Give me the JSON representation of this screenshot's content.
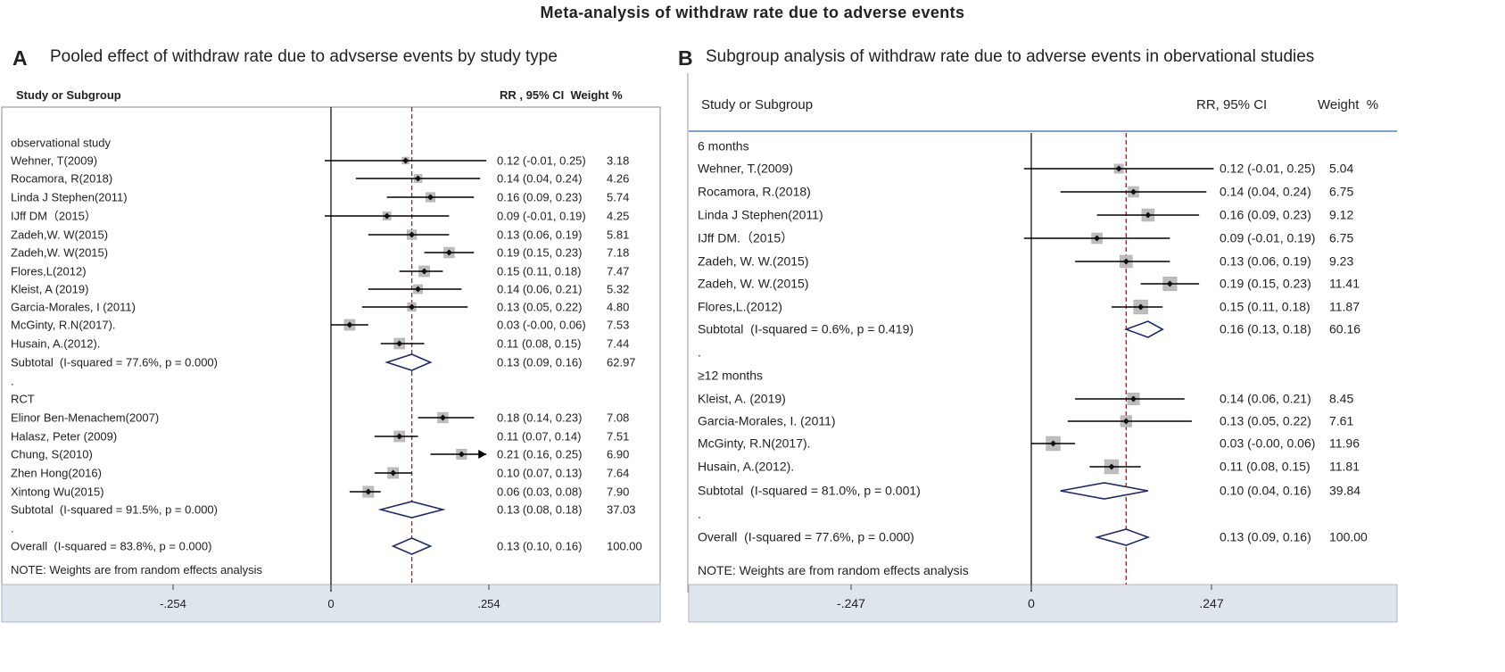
{
  "title": "Meta-analysis of withdraw rate due to adverse events",
  "panels": {
    "A": {
      "letter": "A",
      "title": "Pooled effect of withdraw rate due to advserse events by study type",
      "header_study": "Study or Subgroup",
      "header_rr": "RR , 95% CI  Weight %"
    },
    "B": {
      "letter": "B",
      "title": "Subgroup analysis of withdraw rate due to adverse events  in obervational studies",
      "header_study": "Study or Subgroup",
      "header_rr": "RR, 95% CI",
      "header_weight": "Weight  %"
    }
  },
  "chart_data": [
    {
      "type": "forest",
      "panel": "A",
      "axis": {
        "min": -0.35,
        "max": 0.34,
        "ticks": [
          -0.254,
          0,
          0.254
        ],
        "tick_labels": [
          "-.254",
          "0",
          ".254"
        ],
        "ref_line": 0.13
      },
      "note": "NOTE: Weights are from random effects analysis",
      "rows": [
        {
          "kind": "group",
          "label": "observational study"
        },
        {
          "kind": "study",
          "label": "Wehner, T(2009)",
          "est": 0.12,
          "lo": -0.01,
          "hi": 0.25,
          "ci_text": "0.12 (-0.01, 0.25)",
          "weight": "3.18",
          "w": 3.18
        },
        {
          "kind": "study",
          "label": "Rocamora, R(2018)",
          "est": 0.14,
          "lo": 0.04,
          "hi": 0.24,
          "ci_text": "0.14 (0.04, 0.24)",
          "weight": "4.26",
          "w": 4.26
        },
        {
          "kind": "study",
          "label": "Linda J Stephen(2011)",
          "est": 0.16,
          "lo": 0.09,
          "hi": 0.23,
          "ci_text": "0.16 (0.09, 0.23)",
          "weight": "5.74",
          "w": 5.74
        },
        {
          "kind": "study",
          "label": "IJff DM（2015）",
          "est": 0.09,
          "lo": -0.01,
          "hi": 0.19,
          "ci_text": "0.09 (-0.01, 0.19)",
          "weight": "4.25",
          "w": 4.25
        },
        {
          "kind": "study",
          "label": "Zadeh,W. W(2015)",
          "est": 0.13,
          "lo": 0.06,
          "hi": 0.19,
          "ci_text": "0.13 (0.06, 0.19)",
          "weight": "5.81",
          "w": 5.81
        },
        {
          "kind": "study",
          "label": "Zadeh,W. W(2015)",
          "est": 0.19,
          "lo": 0.15,
          "hi": 0.23,
          "ci_text": "0.19 (0.15, 0.23)",
          "weight": "7.18",
          "w": 7.18
        },
        {
          "kind": "study",
          "label": "Flores,L(2012)",
          "est": 0.15,
          "lo": 0.11,
          "hi": 0.18,
          "ci_text": "0.15 (0.11, 0.18)",
          "weight": "7.47",
          "w": 7.47
        },
        {
          "kind": "study",
          "label": "Kleist, A (2019)",
          "est": 0.14,
          "lo": 0.06,
          "hi": 0.21,
          "ci_text": "0.14 (0.06, 0.21)",
          "weight": "5.32",
          "w": 5.32
        },
        {
          "kind": "study",
          "label": "Garcia-Morales, I (2011)",
          "est": 0.13,
          "lo": 0.05,
          "hi": 0.22,
          "ci_text": "0.13 (0.05, 0.22)",
          "weight": "4.80",
          "w": 4.8
        },
        {
          "kind": "study",
          "label": "McGinty, R.N(2017).",
          "est": 0.03,
          "lo": -0.0,
          "hi": 0.06,
          "ci_text": "0.03 (-0.00, 0.06)",
          "weight": "7.53",
          "w": 7.53
        },
        {
          "kind": "study",
          "label": "Husain, A.(2012).",
          "est": 0.11,
          "lo": 0.08,
          "hi": 0.15,
          "ci_text": "0.11 (0.08, 0.15)",
          "weight": "7.44",
          "w": 7.44
        },
        {
          "kind": "subtotal",
          "label": "Subtotal  (I-squared = 77.6%, p = 0.000)",
          "est": 0.13,
          "lo": 0.09,
          "hi": 0.16,
          "ci_text": "0.13 (0.09, 0.16)",
          "weight": "62.97"
        },
        {
          "kind": "dot",
          "label": "."
        },
        {
          "kind": "group",
          "label": "RCT"
        },
        {
          "kind": "study",
          "label": "Elinor Ben-Menachem(2007)",
          "est": 0.18,
          "lo": 0.14,
          "hi": 0.23,
          "ci_text": "0.18 (0.14, 0.23)",
          "weight": "7.08",
          "w": 7.08
        },
        {
          "kind": "study",
          "label": "Halasz, Peter (2009)",
          "est": 0.11,
          "lo": 0.07,
          "hi": 0.14,
          "ci_text": "0.11 (0.07, 0.14)",
          "weight": "7.51",
          "w": 7.51
        },
        {
          "kind": "study",
          "label": "Chung, S(2010)",
          "est": 0.21,
          "lo": 0.16,
          "hi": 0.25,
          "ci_text": "0.21 (0.16, 0.25)",
          "weight": "6.90",
          "w": 6.9,
          "arrow": true
        },
        {
          "kind": "study",
          "label": "Zhen Hong(2016)",
          "est": 0.1,
          "lo": 0.07,
          "hi": 0.13,
          "ci_text": "0.10 (0.07, 0.13)",
          "weight": "7.64",
          "w": 7.64
        },
        {
          "kind": "study",
          "label": "Xintong Wu(2015)",
          "est": 0.06,
          "lo": 0.03,
          "hi": 0.08,
          "ci_text": "0.06 (0.03, 0.08)",
          "weight": "7.90",
          "w": 7.9
        },
        {
          "kind": "subtotal",
          "label": "Subtotal  (I-squared = 91.5%, p = 0.000)",
          "est": 0.13,
          "lo": 0.08,
          "hi": 0.18,
          "ci_text": "0.13 (0.08, 0.18)",
          "weight": "37.03"
        },
        {
          "kind": "dot",
          "label": "."
        },
        {
          "kind": "overall",
          "label": "Overall  (I-squared = 83.8%, p = 0.000)",
          "est": 0.13,
          "lo": 0.1,
          "hi": 0.16,
          "ci_text": "0.13 (0.10, 0.16)",
          "weight": "100.00"
        }
      ]
    },
    {
      "type": "forest",
      "panel": "B",
      "axis": {
        "min": -0.33,
        "max": 0.34,
        "ticks": [
          -0.247,
          0,
          0.247
        ],
        "tick_labels": [
          "-.247",
          "0",
          ".247"
        ],
        "ref_line": 0.13
      },
      "note": "NOTE: Weights are from random effects analysis",
      "rows": [
        {
          "kind": "group",
          "label": "6 months"
        },
        {
          "kind": "study",
          "label": "Wehner, T.(2009)",
          "est": 0.12,
          "lo": -0.01,
          "hi": 0.25,
          "ci_text": "0.12 (-0.01, 0.25)",
          "weight": "5.04",
          "w": 5.04
        },
        {
          "kind": "study",
          "label": "Rocamora, R.(2018)",
          "est": 0.14,
          "lo": 0.04,
          "hi": 0.24,
          "ci_text": "0.14 (0.04, 0.24)",
          "weight": "6.75",
          "w": 6.75
        },
        {
          "kind": "study",
          "label": "Linda J Stephen(2011)",
          "est": 0.16,
          "lo": 0.09,
          "hi": 0.23,
          "ci_text": "0.16 (0.09, 0.23)",
          "weight": "9.12",
          "w": 9.12
        },
        {
          "kind": "study",
          "label": "IJff DM.（2015）",
          "est": 0.09,
          "lo": -0.01,
          "hi": 0.19,
          "ci_text": "0.09 (-0.01, 0.19)",
          "weight": "6.75",
          "w": 6.75
        },
        {
          "kind": "study",
          "label": "Zadeh, W. W.(2015)",
          "est": 0.13,
          "lo": 0.06,
          "hi": 0.19,
          "ci_text": "0.13 (0.06, 0.19)",
          "weight": "9.23",
          "w": 9.23
        },
        {
          "kind": "study",
          "label": "Zadeh, W. W.(2015)",
          "est": 0.19,
          "lo": 0.15,
          "hi": 0.23,
          "ci_text": "0.19 (0.15, 0.23)",
          "weight": "11.41",
          "w": 11.41
        },
        {
          "kind": "study",
          "label": "Flores,L.(2012)",
          "est": 0.15,
          "lo": 0.11,
          "hi": 0.18,
          "ci_text": "0.15 (0.11, 0.18)",
          "weight": "11.87",
          "w": 11.87
        },
        {
          "kind": "subtotal",
          "label": "Subtotal  (I-squared = 0.6%, p = 0.419)",
          "est": 0.16,
          "lo": 0.13,
          "hi": 0.18,
          "ci_text": "0.16 (0.13, 0.18)",
          "weight": "60.16"
        },
        {
          "kind": "dot",
          "label": "."
        },
        {
          "kind": "group",
          "label": "≥12 months"
        },
        {
          "kind": "study",
          "label": "Kleist, A. (2019)",
          "est": 0.14,
          "lo": 0.06,
          "hi": 0.21,
          "ci_text": "0.14 (0.06, 0.21)",
          "weight": "8.45",
          "w": 8.45
        },
        {
          "kind": "study",
          "label": "Garcia-Morales, I. (2011)",
          "est": 0.13,
          "lo": 0.05,
          "hi": 0.22,
          "ci_text": "0.13 (0.05, 0.22)",
          "weight": "7.61",
          "w": 7.61
        },
        {
          "kind": "study",
          "label": "McGinty, R.N(2017).",
          "est": 0.03,
          "lo": -0.0,
          "hi": 0.06,
          "ci_text": "0.03 (-0.00, 0.06)",
          "weight": "11.96",
          "w": 11.96
        },
        {
          "kind": "study",
          "label": "Husain, A.(2012).",
          "est": 0.11,
          "lo": 0.08,
          "hi": 0.15,
          "ci_text": "0.11 (0.08, 0.15)",
          "weight": "11.81",
          "w": 11.81
        },
        {
          "kind": "subtotal",
          "label": "Subtotal  (I-squared = 81.0%, p = 0.001)",
          "est": 0.1,
          "lo": 0.04,
          "hi": 0.16,
          "ci_text": "0.10 (0.04, 0.16)",
          "weight": "39.84"
        },
        {
          "kind": "dot",
          "label": "."
        },
        {
          "kind": "overall",
          "label": "Overall  (I-squared = 77.6%, p = 0.000)",
          "est": 0.13,
          "lo": 0.09,
          "hi": 0.16,
          "ci_text": "0.13 (0.09, 0.16)",
          "weight": "100.00"
        }
      ]
    }
  ]
}
